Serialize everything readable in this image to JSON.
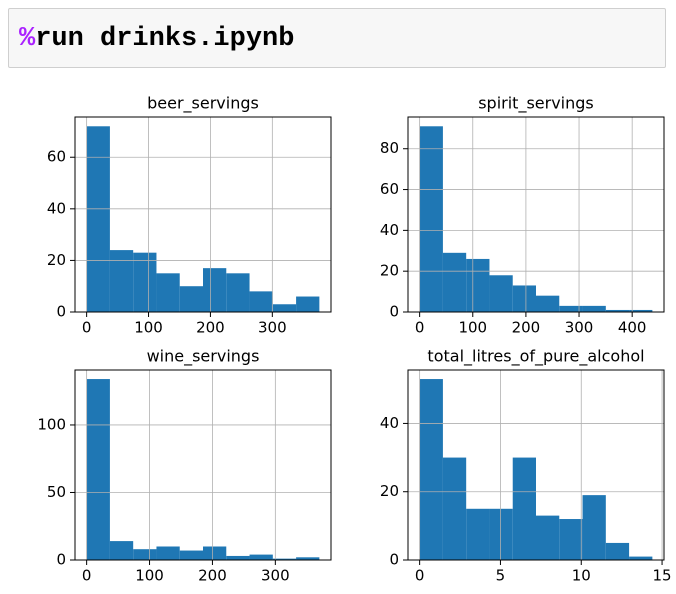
{
  "cell": {
    "magic": "%",
    "code": "run drinks.ipynb"
  },
  "chart_data": [
    {
      "type": "histogram",
      "title": "beer_servings",
      "color": "#1f77b4",
      "grid": true,
      "bins": [
        0,
        37.6,
        75.2,
        112.8,
        150.4,
        188,
        225.6,
        263.2,
        300.8,
        338.4,
        376
      ],
      "values": [
        72,
        24,
        23,
        15,
        10,
        17,
        15,
        8,
        3,
        6
      ],
      "xlim": [
        -18.8,
        394.8
      ],
      "xticks": [
        0,
        100,
        200,
        300
      ],
      "ylim": [
        0,
        75.6
      ],
      "yticks": [
        0,
        20,
        40,
        60
      ]
    },
    {
      "type": "histogram",
      "title": "spirit_servings",
      "color": "#1f77b4",
      "grid": true,
      "bins": [
        0,
        43.8,
        87.6,
        131.4,
        175.2,
        219,
        262.8,
        306.6,
        350.4,
        394.2,
        438
      ],
      "values": [
        91,
        29,
        26,
        18,
        13,
        8,
        3,
        3,
        1,
        1
      ],
      "xlim": [
        -21.9,
        459.9
      ],
      "xticks": [
        0,
        100,
        200,
        300,
        400
      ],
      "ylim": [
        0,
        95.55
      ],
      "yticks": [
        0,
        20,
        40,
        60,
        80
      ]
    },
    {
      "type": "histogram",
      "title": "wine_servings",
      "color": "#1f77b4",
      "grid": true,
      "bins": [
        0,
        37,
        74,
        111,
        148,
        185,
        222,
        259,
        296,
        333,
        370
      ],
      "values": [
        134,
        14,
        8,
        10,
        7,
        10,
        3,
        4,
        1,
        2
      ],
      "xlim": [
        -18.5,
        388.5
      ],
      "xticks": [
        0,
        100,
        200,
        300
      ],
      "ylim": [
        0,
        140.7
      ],
      "yticks": [
        0,
        50,
        100
      ]
    },
    {
      "type": "histogram",
      "title": "total_litres_of_pure_alcohol",
      "color": "#1f77b4",
      "grid": true,
      "bins": [
        0,
        1.44,
        2.88,
        4.32,
        5.76,
        7.2,
        8.64,
        10.08,
        11.52,
        12.96,
        14.4
      ],
      "values": [
        53,
        30,
        15,
        15,
        30,
        13,
        12,
        19,
        5,
        1
      ],
      "xlim": [
        -0.72,
        15.12
      ],
      "xticks": [
        0,
        5,
        10,
        15
      ],
      "ylim": [
        0,
        55.65
      ],
      "yticks": [
        0,
        20,
        40
      ]
    }
  ]
}
